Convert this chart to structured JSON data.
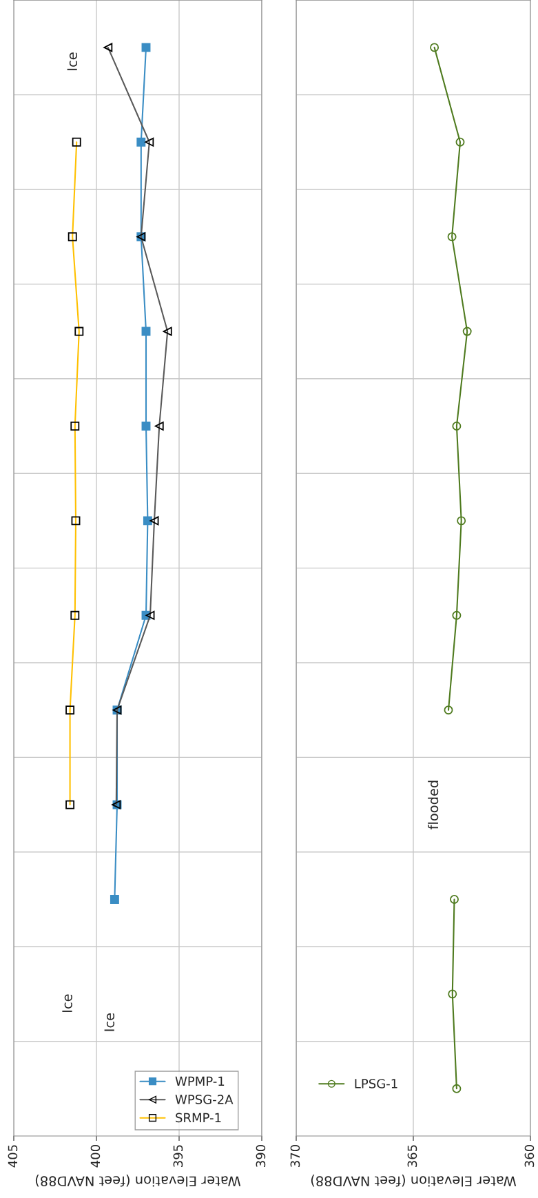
{
  "chart_data": [
    {
      "type": "line",
      "orientation": "horizontal",
      "categories": [
        null,
        null,
        null,
        null,
        null,
        null,
        null,
        null,
        null,
        null,
        null,
        null
      ],
      "xlabel": "Water Elevation (feet NAVD88)",
      "xlim": [
        405,
        390
      ],
      "xticks": [
        405,
        400,
        395,
        390
      ],
      "grid": true,
      "legend": "bottom right",
      "tick_labels": "x",
      "series": [
        {
          "name": "WPMP-1",
          "color": "#3a8dc4",
          "marker": "square",
          "values": [
            397.0,
            397.3,
            397.3,
            397.0,
            397.0,
            396.9,
            397.0,
            398.75,
            398.75,
            398.9,
            null,
            null
          ]
        },
        {
          "name": "WPSG-2A",
          "color": "#595959",
          "marker": "triangle",
          "values": [
            399.3,
            396.8,
            397.3,
            395.7,
            396.2,
            396.5,
            396.75,
            398.75,
            398.8,
            null,
            null,
            null
          ]
        },
        {
          "name": "SRMP-1",
          "color": "#ffc000",
          "marker": "square",
          "values": [
            null,
            401.2,
            401.45,
            401.05,
            401.3,
            401.25,
            401.3,
            401.6,
            401.6,
            null,
            null,
            null
          ]
        }
      ],
      "annotations": [
        "Ice",
        "Ice",
        "Ice"
      ]
    },
    {
      "type": "line",
      "orientation": "horizontal",
      "categories": [
        null,
        null,
        null,
        null,
        null,
        null,
        null,
        null,
        null,
        null,
        null,
        null
      ],
      "xlabel": "Water Elevation (feet NAVD88)",
      "xlim": [
        370,
        360
      ],
      "xticks": [
        370,
        365,
        360
      ],
      "grid": true,
      "legend": "bottom left",
      "tick_labels": "x",
      "series": [
        {
          "name": "LPSG-1",
          "color": "#4f7b1f",
          "marker": "circle",
          "values": [
            364.1,
            363.0,
            363.35,
            362.7,
            363.15,
            362.95,
            363.15,
            363.5,
            null,
            363.25,
            363.33,
            363.15
          ]
        }
      ],
      "annotations": [
        "flooded"
      ]
    }
  ]
}
